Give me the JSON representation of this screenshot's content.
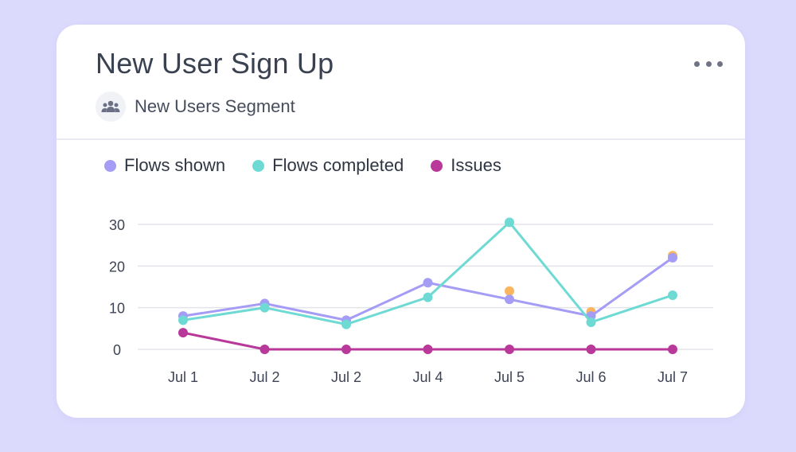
{
  "card": {
    "title": "New User Sign Up",
    "segment_label": "New Users Segment",
    "segment_icon": "users-group-icon",
    "more_icon": "more-horizontal-icon"
  },
  "colors": {
    "background": "#dcdafc",
    "flows_shown": "#a49cf5",
    "flows_completed": "#6fdad4",
    "issues": "#b8399a",
    "highlight": "#f9b65e"
  },
  "chart_data": {
    "type": "line",
    "title": "",
    "xlabel": "",
    "ylabel": "",
    "categories": [
      "Jul 1",
      "Jul 2",
      "Jul 2",
      "Jul 4",
      "Jul 5",
      "Jul 6",
      "Jul 7"
    ],
    "yticks": [
      "0",
      "10",
      "20",
      "30"
    ],
    "ylim": [
      0,
      30
    ],
    "grid": true,
    "legend_position": "top-left",
    "series": [
      {
        "name": "Flows shown",
        "color": "#a49cf5",
        "values": [
          8,
          11,
          7,
          16,
          12,
          8,
          22
        ]
      },
      {
        "name": "Flows completed",
        "color": "#6fdad4",
        "values": [
          7,
          10,
          6,
          12.5,
          30.5,
          6.5,
          13
        ]
      },
      {
        "name": "Issues",
        "color": "#b8399a",
        "values": [
          4,
          0,
          0,
          0,
          0,
          0,
          0
        ]
      }
    ],
    "highlight_points": [
      {
        "category_index": 4,
        "value": 14
      },
      {
        "category_index": 5,
        "value": 9
      },
      {
        "category_index": 6,
        "value": 22.5
      }
    ]
  }
}
